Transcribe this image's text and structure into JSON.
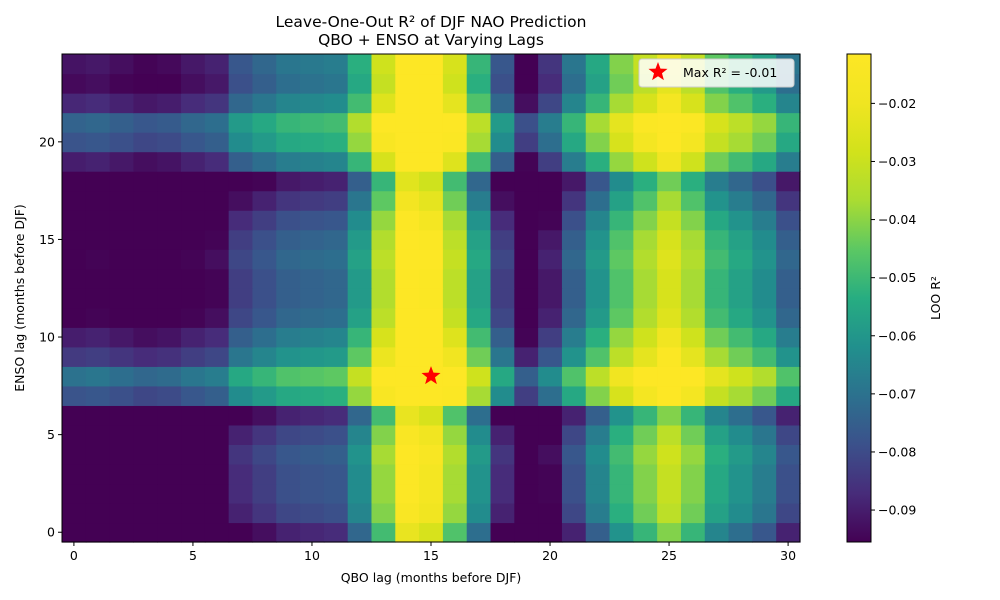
{
  "chart_data": {
    "type": "heatmap",
    "title": "Leave-One-Out R² of DJF NAO Prediction",
    "subtitle": "QBO + ENSO at Varying Lags",
    "xlabel": "QBO lag (months before DJF)",
    "ylabel": "ENSO lag (months before DJF)",
    "colorbar_label": "LOO R²",
    "colormap": "viridis",
    "x_range": [
      0,
      30
    ],
    "y_range": [
      0,
      24
    ],
    "color_range": [
      -0.0955,
      -0.0115
    ],
    "x_ticks": [
      0,
      5,
      10,
      15,
      20,
      25,
      30
    ],
    "y_ticks": [
      0,
      5,
      10,
      15,
      20
    ],
    "colorbar_ticks": [
      -0.02,
      -0.03,
      -0.04,
      -0.05,
      -0.06,
      -0.07,
      -0.08,
      -0.09
    ],
    "qbo_effect": [
      -0.015,
      -0.014,
      -0.016,
      -0.018,
      -0.017,
      -0.014,
      -0.012,
      0.0,
      0.004,
      0.008,
      0.009,
      0.01,
      0.024,
      0.048,
      0.075,
      0.07,
      0.05,
      0.026,
      0.0,
      -0.02,
      -0.008,
      0.008,
      0.022,
      0.036,
      0.046,
      0.056,
      0.046,
      0.032,
      0.026,
      0.02,
      0.008
    ],
    "enso_effect": [
      -0.01,
      -0.002,
      0.0,
      0.0,
      0.002,
      -0.002,
      -0.01,
      0.024,
      0.032,
      0.018,
      0.012,
      0.006,
      0.004,
      0.004,
      0.006,
      0.004,
      0.0,
      -0.006,
      -0.012,
      0.012,
      0.024,
      0.028,
      0.014,
      0.008,
      0.01
    ],
    "base_value": -0.087,
    "max_marker": {
      "qbo_lag": 15,
      "enso_lag": 8,
      "legend_label": "Max R² = -0.01",
      "color": "#ff0000"
    },
    "legend_position": "upper right",
    "grid": false
  }
}
